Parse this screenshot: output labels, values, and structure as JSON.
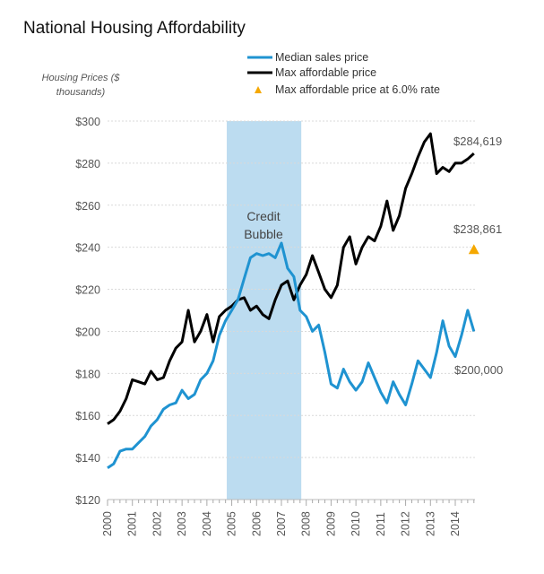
{
  "chart_data": {
    "type": "line",
    "title": "National Housing  Affordability",
    "ylabel_line1": "Housing Prices ($",
    "ylabel_line2": "thousands)",
    "xlabel": "",
    "xlim": [
      2000,
      2014.75
    ],
    "ylim": [
      120,
      300
    ],
    "grid": true,
    "legend_placement": "top-right",
    "y_ticks": [
      {
        "value": 120,
        "label": "$120"
      },
      {
        "value": 140,
        "label": "$140"
      },
      {
        "value": 160,
        "label": "$160"
      },
      {
        "value": 180,
        "label": "$180"
      },
      {
        "value": 200,
        "label": "$200"
      },
      {
        "value": 220,
        "label": "$220"
      },
      {
        "value": 240,
        "label": "$240"
      },
      {
        "value": 260,
        "label": "$260"
      },
      {
        "value": 280,
        "label": "$280"
      },
      {
        "value": 300,
        "label": "$300"
      }
    ],
    "x_ticks": [
      "2000",
      "2001",
      "2002",
      "2003",
      "2004",
      "2005",
      "2006",
      "2007",
      "2008",
      "2009",
      "2010",
      "2011",
      "2012",
      "2013",
      "2014"
    ],
    "shaded_region": {
      "label_line1": "Credit",
      "label_line2": "Bubble",
      "x_start": 2004.8,
      "x_end": 2007.8,
      "color": "#bcdcf0"
    },
    "series": [
      {
        "name": "Median sales price",
        "color": "#1f93d1",
        "end_label": "$200,000",
        "x": [
          2000,
          2000.25,
          2000.5,
          2000.75,
          2001,
          2001.25,
          2001.5,
          2001.75,
          2002,
          2002.25,
          2002.5,
          2002.75,
          2003,
          2003.25,
          2003.5,
          2003.75,
          2004,
          2004.25,
          2004.5,
          2004.75,
          2005,
          2005.25,
          2005.5,
          2005.75,
          2006,
          2006.25,
          2006.5,
          2006.75,
          2007,
          2007.25,
          2007.5,
          2007.75,
          2008,
          2008.25,
          2008.5,
          2008.75,
          2009,
          2009.25,
          2009.5,
          2009.75,
          2010,
          2010.25,
          2010.5,
          2010.75,
          2011,
          2011.25,
          2011.5,
          2011.75,
          2012,
          2012.25,
          2012.5,
          2012.75,
          2013,
          2013.25,
          2013.5,
          2013.75,
          2014,
          2014.25,
          2014.5,
          2014.75
        ],
        "y": [
          135,
          137,
          143,
          144,
          144,
          147,
          150,
          155,
          158,
          163,
          165,
          166,
          172,
          168,
          170,
          177,
          180,
          186,
          198,
          205,
          210,
          215,
          225,
          235,
          237,
          236,
          237,
          235,
          242,
          230,
          226,
          210,
          207,
          200,
          203,
          190,
          175,
          173,
          182,
          176,
          172,
          176,
          185,
          178,
          171,
          166,
          176,
          170,
          165,
          175,
          186,
          182,
          178,
          190,
          205,
          193,
          188,
          198,
          210,
          200
        ]
      },
      {
        "name": "Max affordable price",
        "color": "#000000",
        "end_label": "$284,619",
        "x": [
          2000,
          2000.25,
          2000.5,
          2000.75,
          2001,
          2001.25,
          2001.5,
          2001.75,
          2002,
          2002.25,
          2002.5,
          2002.75,
          2003,
          2003.25,
          2003.5,
          2003.75,
          2004,
          2004.25,
          2004.5,
          2004.75,
          2005,
          2005.25,
          2005.5,
          2005.75,
          2006,
          2006.25,
          2006.5,
          2006.75,
          2007,
          2007.25,
          2007.5,
          2007.75,
          2008,
          2008.25,
          2008.5,
          2008.75,
          2009,
          2009.25,
          2009.5,
          2009.75,
          2010,
          2010.25,
          2010.5,
          2010.75,
          2011,
          2011.25,
          2011.5,
          2011.75,
          2012,
          2012.25,
          2012.5,
          2012.75,
          2013,
          2013.25,
          2013.5,
          2013.75,
          2014,
          2014.25,
          2014.5,
          2014.75
        ],
        "y": [
          156,
          158,
          162,
          168,
          177,
          176,
          175,
          181,
          177,
          178,
          186,
          192,
          195,
          210,
          195,
          200,
          208,
          195,
          207,
          210,
          212,
          215,
          216,
          210,
          212,
          208,
          206,
          215,
          222,
          224,
          215,
          222,
          227,
          236,
          228,
          220,
          216,
          222,
          240,
          245,
          232,
          240,
          245,
          243,
          250,
          262,
          248,
          255,
          268,
          275,
          283,
          290,
          294,
          275,
          278,
          276,
          280,
          280,
          282,
          284.6
        ]
      }
    ],
    "point": {
      "name": "Max affordable price at 6.0% rate",
      "x": 2014.75,
      "y": 238.9,
      "label": "$238,861",
      "color": "#f5a800"
    }
  }
}
